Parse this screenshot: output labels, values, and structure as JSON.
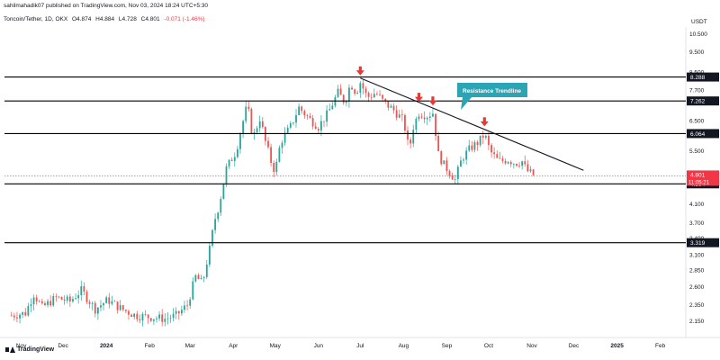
{
  "header": {
    "publisher_line": "sahilmahadik07 published on TradingView.com, Nov 03, 2024 18:24 UTC+5:30"
  },
  "legend": {
    "symbol": "Toncoin/Tether, 1D, OKX",
    "open": "O4.874",
    "high": "H4.884",
    "low": "L4.728",
    "close": "C4.801",
    "change": "-0.071 (-1.46%)"
  },
  "colors": {
    "up": "#26a69a",
    "down": "#ef5350",
    "accent": "#2aa5b5",
    "arrow": "#e53935",
    "price_tag": "#f23645",
    "level": "#000000"
  },
  "footer": {
    "brand": "TradingView"
  },
  "chart_data": {
    "type": "candlestick",
    "currency_label": "USDT",
    "y_ticks": [
      "10.500",
      "9.500",
      "8.500",
      "7.700",
      "6.500",
      "5.500",
      "4.800",
      "4.100",
      "3.700",
      "3.400",
      "3.100",
      "2.850",
      "2.600",
      "2.350",
      "2.150"
    ],
    "y_tick_values": [
      10.5,
      9.5,
      8.5,
      7.7,
      6.5,
      5.5,
      4.8,
      4.1,
      3.7,
      3.4,
      3.1,
      2.85,
      2.6,
      2.35,
      2.15
    ],
    "y_scale": "log",
    "x_ticks": [
      "Nov",
      "Dec",
      "2024",
      "Feb",
      "Mar",
      "Apr",
      "May",
      "Jun",
      "Jul",
      "Aug",
      "Sep",
      "Oct",
      "Nov",
      "Dec",
      "2025",
      "Feb"
    ],
    "x_tick_dates": [
      "2023-11-01",
      "2023-12-01",
      "2024-01-01",
      "2024-02-01",
      "2024-03-01",
      "2024-04-01",
      "2024-05-01",
      "2024-06-01",
      "2024-07-01",
      "2024-08-01",
      "2024-09-01",
      "2024-10-01",
      "2024-11-01",
      "2024-12-01",
      "2025-01-01",
      "2025-02-01"
    ],
    "horizontal_levels": [
      {
        "label": "8.288",
        "value": 8.288
      },
      {
        "label": "7.262",
        "value": 7.262
      },
      {
        "label": "6.064",
        "value": 6.064
      },
      {
        "label": "4.594",
        "value": 4.594
      },
      {
        "label": "3.319",
        "value": 3.319
      }
    ],
    "current_price": {
      "label": "4.801",
      "value": 4.801,
      "countdown": "11:05:21"
    },
    "trendline": {
      "label": "Resistance Trendline",
      "start": {
        "date": "2024-07-01",
        "value": 8.24
      },
      "end": {
        "date": "2024-12-08",
        "value": 4.95
      }
    },
    "rejection_arrows": [
      {
        "date": "2024-07-01",
        "value": 8.24
      },
      {
        "date": "2024-08-12",
        "value": 7.12
      },
      {
        "date": "2024-08-22",
        "value": 6.98
      },
      {
        "date": "2024-09-28",
        "value": 6.22
      }
    ],
    "price_path": [
      {
        "date": "2023-10-25",
        "value": 2.22
      },
      {
        "date": "2023-11-04",
        "value": 2.25
      },
      {
        "date": "2023-11-10",
        "value": 2.5
      },
      {
        "date": "2023-11-16",
        "value": 2.32
      },
      {
        "date": "2023-11-26",
        "value": 2.45
      },
      {
        "date": "2023-12-06",
        "value": 2.4
      },
      {
        "date": "2023-12-14",
        "value": 2.55
      },
      {
        "date": "2023-12-24",
        "value": 2.3
      },
      {
        "date": "2024-01-02",
        "value": 2.42
      },
      {
        "date": "2024-01-12",
        "value": 2.3
      },
      {
        "date": "2024-01-22",
        "value": 2.22
      },
      {
        "date": "2024-02-02",
        "value": 2.2
      },
      {
        "date": "2024-02-12",
        "value": 2.18
      },
      {
        "date": "2024-02-20",
        "value": 2.22
      },
      {
        "date": "2024-02-28",
        "value": 2.35
      },
      {
        "date": "2024-03-05",
        "value": 2.75
      },
      {
        "date": "2024-03-10",
        "value": 2.65
      },
      {
        "date": "2024-03-15",
        "value": 3.2
      },
      {
        "date": "2024-03-19",
        "value": 3.8
      },
      {
        "date": "2024-03-22",
        "value": 4.1
      },
      {
        "date": "2024-03-27",
        "value": 5.0
      },
      {
        "date": "2024-04-03",
        "value": 5.5
      },
      {
        "date": "2024-04-08",
        "value": 6.5
      },
      {
        "date": "2024-04-11",
        "value": 7.1
      },
      {
        "date": "2024-04-15",
        "value": 5.9
      },
      {
        "date": "2024-04-20",
        "value": 6.6
      },
      {
        "date": "2024-04-24",
        "value": 5.8
      },
      {
        "date": "2024-04-28",
        "value": 5.2
      },
      {
        "date": "2024-05-01",
        "value": 4.9
      },
      {
        "date": "2024-05-05",
        "value": 5.8
      },
      {
        "date": "2024-05-12",
        "value": 6.3
      },
      {
        "date": "2024-05-18",
        "value": 7.0
      },
      {
        "date": "2024-05-25",
        "value": 6.6
      },
      {
        "date": "2024-06-01",
        "value": 6.3
      },
      {
        "date": "2024-06-08",
        "value": 6.8
      },
      {
        "date": "2024-06-15",
        "value": 7.6
      },
      {
        "date": "2024-06-20",
        "value": 7.2
      },
      {
        "date": "2024-06-24",
        "value": 8.0
      },
      {
        "date": "2024-06-28",
        "value": 7.6
      },
      {
        "date": "2024-07-01",
        "value": 8.05
      },
      {
        "date": "2024-07-06",
        "value": 7.4
      },
      {
        "date": "2024-07-12",
        "value": 7.6
      },
      {
        "date": "2024-07-18",
        "value": 7.2
      },
      {
        "date": "2024-07-25",
        "value": 6.9
      },
      {
        "date": "2024-08-01",
        "value": 6.5
      },
      {
        "date": "2024-08-05",
        "value": 5.5
      },
      {
        "date": "2024-08-08",
        "value": 6.3
      },
      {
        "date": "2024-08-12",
        "value": 6.8
      },
      {
        "date": "2024-08-18",
        "value": 6.7
      },
      {
        "date": "2024-08-22",
        "value": 6.8
      },
      {
        "date": "2024-08-26",
        "value": 5.4
      },
      {
        "date": "2024-08-30",
        "value": 5.1
      },
      {
        "date": "2024-09-04",
        "value": 4.85
      },
      {
        "date": "2024-09-07",
        "value": 4.7
      },
      {
        "date": "2024-09-12",
        "value": 5.3
      },
      {
        "date": "2024-09-18",
        "value": 5.6
      },
      {
        "date": "2024-09-24",
        "value": 5.8
      },
      {
        "date": "2024-09-28",
        "value": 6.05
      },
      {
        "date": "2024-10-02",
        "value": 5.5
      },
      {
        "date": "2024-10-08",
        "value": 5.2
      },
      {
        "date": "2024-10-15",
        "value": 5.25
      },
      {
        "date": "2024-10-20",
        "value": 5.15
      },
      {
        "date": "2024-10-25",
        "value": 5.2
      },
      {
        "date": "2024-10-28",
        "value": 4.95
      },
      {
        "date": "2024-11-01",
        "value": 4.85
      },
      {
        "date": "2024-11-03",
        "value": 4.8
      }
    ]
  }
}
